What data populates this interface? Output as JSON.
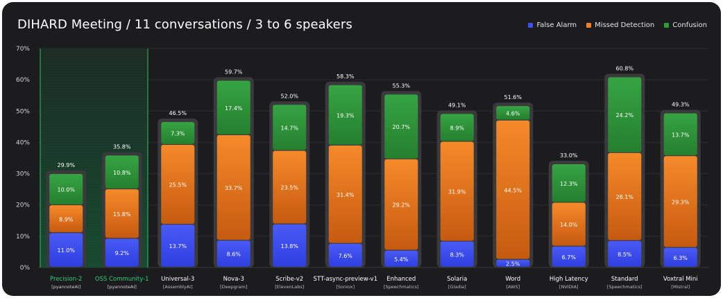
{
  "title": "DIHARD Meeting / 11 conversations / 3 to 6 speakers",
  "legend": [
    {
      "label": "False Alarm",
      "color": "#3f4ff0"
    },
    {
      "label": "Missed Detection",
      "color": "#f28224"
    },
    {
      "label": "Confusion",
      "color": "#2f9a3c"
    }
  ],
  "chart_data": {
    "type": "bar",
    "stacked": true,
    "title": "DIHARD Meeting / 11 conversations / 3 to 6 speakers",
    "ylim": [
      0,
      70
    ],
    "yticks": [
      "0%",
      "10%",
      "20%",
      "30%",
      "40%",
      "50%",
      "60%",
      "70%"
    ],
    "categories": [
      "Precision-2",
      "OSS Community-1",
      "Universal-3",
      "Nova-3",
      "Scribe-v2",
      "STT-async-preview-v1",
      "Enhanced",
      "Solaria",
      "Word",
      "High Latency",
      "Standard",
      "Voxtral Mini"
    ],
    "providers": [
      "[pyannoteAI]",
      "[pyannoteAI]",
      "[AssemblyAI]",
      "[Deepgram]",
      "[ElevenLabs]",
      "[Soniox]",
      "[Speechmatics]",
      "[Gladia]",
      "[AWS]",
      "[NVIDIA]",
      "[Speechmatics]",
      "[Mistral]"
    ],
    "highlighted": [
      true,
      true,
      false,
      false,
      false,
      false,
      false,
      false,
      false,
      false,
      false,
      false
    ],
    "totals": [
      29.9,
      35.8,
      46.5,
      59.7,
      52.0,
      58.3,
      55.3,
      49.1,
      51.6,
      33.0,
      60.8,
      49.3
    ],
    "total_labels": [
      "29.9%",
      "35.8%",
      "46.5%",
      "59.7%",
      "52.0%",
      "58.3%",
      "55.3%",
      "49.1%",
      "51.6%",
      "33.0%",
      "60.8%",
      "49.3%"
    ],
    "series": [
      {
        "name": "False Alarm",
        "color": "#3f4ff0",
        "values": [
          11.0,
          9.2,
          13.7,
          8.6,
          13.8,
          7.6,
          5.4,
          8.3,
          2.5,
          6.7,
          8.5,
          6.3
        ],
        "labels": [
          "11.0%",
          "9.2%",
          "13.7%",
          "8.6%",
          "13.8%",
          "7.6%",
          "5.4%",
          "8.3%",
          "2.5%",
          "6.7%",
          "8.5%",
          "6.3%"
        ]
      },
      {
        "name": "Missed Detection",
        "color": "#f28224",
        "values": [
          8.9,
          15.8,
          25.5,
          33.7,
          23.5,
          31.4,
          29.2,
          31.9,
          44.5,
          14.0,
          28.1,
          29.3
        ],
        "labels": [
          "8.9%",
          "15.8%",
          "25.5%",
          "33.7%",
          "23.5%",
          "31.4%",
          "29.2%",
          "31.9%",
          "44.5%",
          "14.0%",
          "28.1%",
          "29.3%"
        ]
      },
      {
        "name": "Confusion",
        "color": "#2f9a3c",
        "values": [
          10.0,
          10.8,
          7.3,
          17.4,
          14.7,
          19.3,
          20.7,
          8.9,
          4.6,
          12.3,
          24.2,
          13.7
        ],
        "labels": [
          "10.0%",
          "10.8%",
          "7.3%",
          "17.4%",
          "14.7%",
          "19.3%",
          "20.7%",
          "8.9%",
          "4.6%",
          "12.3%",
          "24.2%",
          "13.7%"
        ]
      }
    ]
  }
}
